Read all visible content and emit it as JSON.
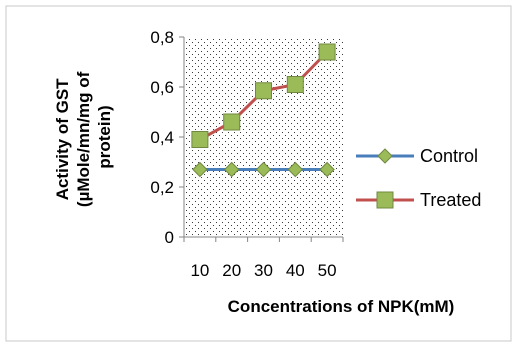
{
  "chart_data": {
    "type": "line",
    "title": "",
    "xlabel": "Concentrations of NPK(mM)",
    "ylabel_lines": [
      "Activity of GST",
      "(µMole/mn/mg of",
      "protein)"
    ],
    "categories": [
      "10",
      "20",
      "30",
      "40",
      "50"
    ],
    "ylim": [
      0,
      0.8
    ],
    "yticks": [
      0,
      0.2,
      0.4,
      0.6,
      0.8
    ],
    "ytick_labels": [
      "0",
      "0,2",
      "0,4",
      "0,6",
      "0,8"
    ],
    "grid": false,
    "plot_background": "dotted",
    "legend_position": "right",
    "series": [
      {
        "name": "Control",
        "values": [
          0.27,
          0.27,
          0.27,
          0.27,
          0.27
        ],
        "color": "#4a7ebb",
        "marker": "diamond",
        "marker_color": "#9bbb59"
      },
      {
        "name": "Treated",
        "values": [
          0.39,
          0.46,
          0.585,
          0.61,
          0.74
        ],
        "color": "#c0504d",
        "marker": "square",
        "marker_color": "#9bbb59"
      }
    ]
  }
}
